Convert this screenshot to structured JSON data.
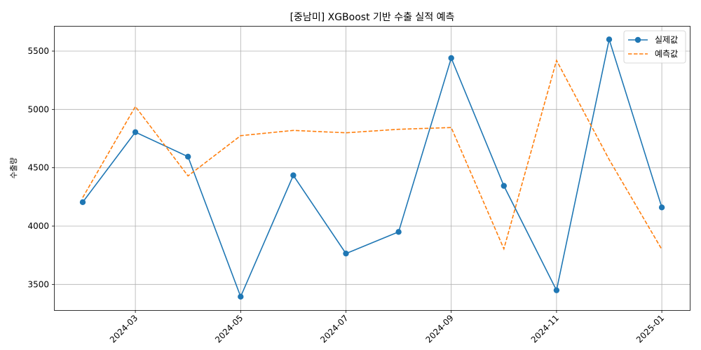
{
  "chart_data": {
    "type": "line",
    "title": "[중남미] XGBoost 기반 수출 실적 예측",
    "xlabel": "",
    "ylabel": "수출량",
    "x": [
      "2024-02",
      "2024-03",
      "2024-04",
      "2024-05",
      "2024-06",
      "2024-07",
      "2024-08",
      "2024-09",
      "2024-10",
      "2024-11",
      "2024-12",
      "2025-01"
    ],
    "x_ticks": [
      "2024-03",
      "2024-05",
      "2024-07",
      "2024-09",
      "2024-11",
      "2025-01"
    ],
    "y_ticks": [
      3500,
      4000,
      4500,
      5000,
      5500
    ],
    "ylim": [
      3280,
      5710
    ],
    "grid": true,
    "legend_position": "top-right",
    "series": [
      {
        "name": "실제값",
        "color": "#1f77b4",
        "style": "solid-markers",
        "values": [
          4205,
          4805,
          4595,
          3395,
          4435,
          3765,
          3950,
          5440,
          4345,
          3450,
          5600,
          4160
        ]
      },
      {
        "name": "예측값",
        "color": "#ff7f0e",
        "style": "dashed",
        "values": [
          4245,
          5025,
          4430,
          4775,
          4820,
          4800,
          4830,
          4845,
          3805,
          5420,
          4570,
          3800
        ]
      }
    ]
  }
}
